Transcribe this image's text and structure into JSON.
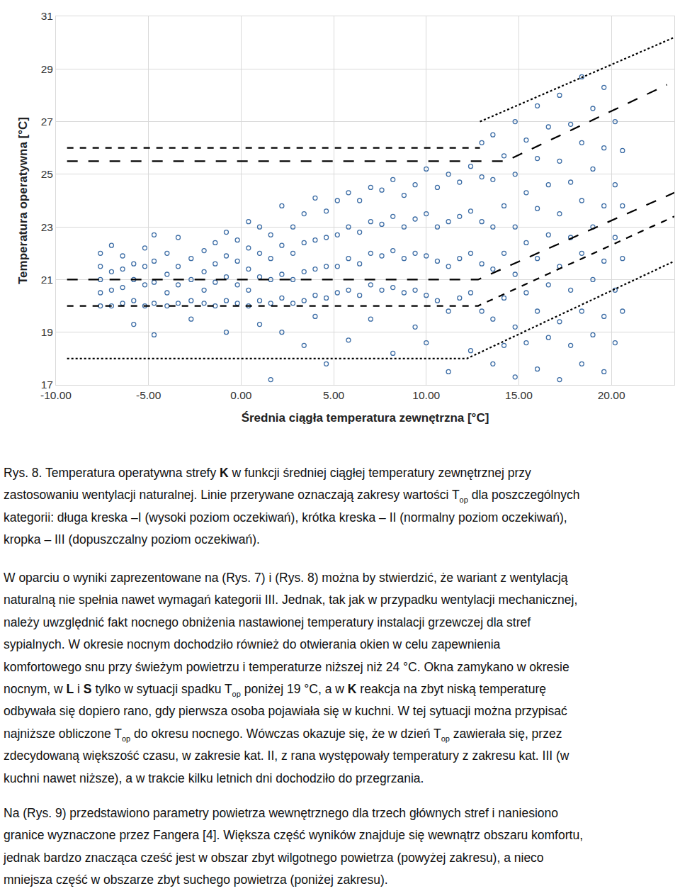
{
  "chart_data": {
    "type": "scatter",
    "xlabel": "Średnia ciągła temperatura zewnętrzna [°C]",
    "ylabel": "Temperatura operatywna [°C]",
    "xlim": [
      -10,
      23.4
    ],
    "ylim": [
      17,
      31
    ],
    "xticks": [
      {
        "value": -10,
        "label": "-10.00"
      },
      {
        "value": -5,
        "label": "-5.00"
      },
      {
        "value": 0,
        "label": "0.00"
      },
      {
        "value": 5,
        "label": "5.00"
      },
      {
        "value": 10,
        "label": "10.00"
      },
      {
        "value": 15,
        "label": "15.00"
      },
      {
        "value": 20,
        "label": "20.00"
      }
    ],
    "yticks": [
      17,
      19,
      21,
      23,
      25,
      27,
      29,
      31
    ],
    "grid": true,
    "color": "#3e6ea6",
    "marker": "circle-open",
    "columns": [
      {
        "x": -7.6,
        "values": [
          20.0,
          20.5,
          21.0,
          21.5,
          22.0
        ]
      },
      {
        "x": -7.0,
        "values": [
          20.0,
          20.6,
          21.3,
          22.3
        ]
      },
      {
        "x": -6.4,
        "values": [
          20.1,
          20.7,
          21.4,
          21.9
        ]
      },
      {
        "x": -5.8,
        "values": [
          19.3,
          20.2,
          21.0,
          21.6
        ]
      },
      {
        "x": -5.2,
        "values": [
          20.0,
          20.8,
          21.5,
          22.2
        ]
      },
      {
        "x": -4.7,
        "values": [
          18.9,
          20.1,
          20.9,
          21.7,
          22.7
        ]
      },
      {
        "x": -4.0,
        "values": [
          20.0,
          20.5,
          21.2,
          22.0
        ]
      },
      {
        "x": -3.4,
        "values": [
          20.1,
          20.8,
          21.5,
          22.6
        ]
      },
      {
        "x": -2.7,
        "values": [
          19.5,
          20.2,
          21.0,
          21.8
        ]
      },
      {
        "x": -2.0,
        "values": [
          20.1,
          20.6,
          21.3,
          22.1
        ]
      },
      {
        "x": -1.4,
        "values": [
          20.0,
          20.9,
          21.6,
          22.4
        ]
      },
      {
        "x": -0.8,
        "values": [
          19.0,
          20.2,
          21.1,
          21.9,
          22.8
        ]
      },
      {
        "x": -0.2,
        "values": [
          20.1,
          20.8,
          21.7,
          22.5
        ]
      },
      {
        "x": 0.4,
        "values": [
          20.0,
          20.6,
          21.4,
          22.2,
          23.2
        ]
      },
      {
        "x": 1.0,
        "values": [
          19.3,
          20.2,
          21.1,
          22.0,
          23.0
        ]
      },
      {
        "x": 1.6,
        "values": [
          17.2,
          20.1,
          21.0,
          21.8,
          22.7
        ]
      },
      {
        "x": 2.2,
        "values": [
          19.0,
          20.3,
          21.2,
          22.3,
          23.8
        ]
      },
      {
        "x": 2.8,
        "values": [
          20.1,
          21.0,
          22.0,
          23.0
        ]
      },
      {
        "x": 3.4,
        "values": [
          18.5,
          20.2,
          21.3,
          22.4,
          23.5
        ]
      },
      {
        "x": 4.0,
        "values": [
          19.6,
          20.4,
          21.4,
          22.5,
          24.1
        ]
      },
      {
        "x": 4.6,
        "values": [
          17.8,
          20.3,
          21.5,
          22.6,
          23.6
        ]
      },
      {
        "x": 5.2,
        "values": [
          20.5,
          21.5,
          22.7,
          24.0
        ]
      },
      {
        "x": 5.8,
        "values": [
          18.7,
          20.6,
          21.8,
          23.0,
          24.3
        ]
      },
      {
        "x": 6.4,
        "values": [
          20.4,
          21.6,
          22.8,
          24.0
        ]
      },
      {
        "x": 7.0,
        "values": [
          19.5,
          20.8,
          22.0,
          23.2,
          24.5
        ]
      },
      {
        "x": 7.6,
        "values": [
          20.6,
          21.9,
          23.1,
          24.4
        ]
      },
      {
        "x": 8.2,
        "values": [
          18.2,
          20.7,
          22.1,
          23.4,
          24.8
        ]
      },
      {
        "x": 8.8,
        "values": [
          20.5,
          21.8,
          23.0,
          24.2
        ]
      },
      {
        "x": 9.4,
        "values": [
          19.2,
          20.6,
          22.0,
          23.3,
          24.6
        ]
      },
      {
        "x": 10.0,
        "values": [
          18.6,
          20.4,
          21.9,
          23.5,
          25.2
        ]
      },
      {
        "x": 10.6,
        "values": [
          20.2,
          21.7,
          23.0,
          24.5
        ]
      },
      {
        "x": 11.2,
        "values": [
          17.5,
          19.8,
          21.5,
          23.2,
          25.0
        ]
      },
      {
        "x": 11.8,
        "values": [
          20.3,
          21.8,
          23.4,
          24.7
        ]
      },
      {
        "x": 12.4,
        "values": [
          18.3,
          20.5,
          22.0,
          23.6,
          25.3
        ]
      },
      {
        "x": 13.0,
        "values": [
          19.8,
          21.6,
          23.2,
          24.9,
          26.2
        ]
      },
      {
        "x": 13.6,
        "values": [
          17.8,
          19.5,
          21.4,
          23.0,
          24.8,
          26.5
        ]
      },
      {
        "x": 14.2,
        "values": [
          18.5,
          20.3,
          22.0,
          23.8,
          25.7
        ]
      },
      {
        "x": 14.8,
        "values": [
          17.3,
          19.2,
          21.2,
          23.0,
          25.0,
          27.0
        ]
      },
      {
        "x": 15.4,
        "values": [
          18.6,
          20.5,
          22.4,
          24.3,
          26.3
        ]
      },
      {
        "x": 16.0,
        "values": [
          17.6,
          19.8,
          21.8,
          23.7,
          25.6,
          27.6
        ]
      },
      {
        "x": 16.6,
        "values": [
          18.8,
          20.8,
          22.7,
          24.6,
          26.8
        ]
      },
      {
        "x": 17.2,
        "values": [
          17.2,
          19.4,
          21.5,
          23.5,
          25.5,
          28.0
        ]
      },
      {
        "x": 17.8,
        "values": [
          18.5,
          20.6,
          22.6,
          24.7,
          26.9
        ]
      },
      {
        "x": 18.4,
        "values": [
          17.8,
          19.8,
          22.0,
          24.0,
          26.2,
          28.7
        ]
      },
      {
        "x": 19.0,
        "values": [
          18.9,
          21.0,
          23.0,
          25.2,
          27.5
        ]
      },
      {
        "x": 19.6,
        "values": [
          17.5,
          19.6,
          21.7,
          23.8,
          26.0,
          28.3
        ]
      },
      {
        "x": 20.2,
        "values": [
          18.6,
          20.6,
          22.6,
          24.6,
          27.0
        ]
      },
      {
        "x": 20.6,
        "values": [
          19.8,
          21.8,
          23.8,
          25.9
        ]
      }
    ],
    "bands": [
      {
        "line_style": "longdash",
        "x": [
          -9.4,
          14.3,
          23.0
        ],
        "values": [
          25.5,
          25.5,
          28.4
        ]
      },
      {
        "line_style": "longdash",
        "x": [
          -9.4,
          12.8,
          23.4
        ],
        "values": [
          21.0,
          21.0,
          24.3
        ]
      },
      {
        "line_style": "dash",
        "x": [
          -9.4,
          12.9
        ],
        "values": [
          26.0,
          26.0
        ]
      },
      {
        "line_style": "dash",
        "x": [
          -9.4,
          12.8,
          23.4
        ],
        "values": [
          20.0,
          20.0,
          23.4
        ]
      },
      {
        "line_style": "dot",
        "x": [
          12.9,
          23.4
        ],
        "values": [
          27.0,
          30.2
        ]
      },
      {
        "line_style": "dot",
        "x": [
          -9.4,
          12.2,
          23.4
        ],
        "values": [
          18.0,
          18.0,
          21.7
        ]
      }
    ]
  },
  "document": {
    "caption": [
      [
        "Rys. 8. Temperatura operatywna strefy ",
        {
          "b": "K"
        },
        " w funkcji średniej ciągłej temperatury zewnętrznej przy"
      ],
      [
        "zastosowaniu wentylacji naturalnej. Linie przerywane oznaczają zakresy wartości T",
        {
          "sub": "op"
        },
        " dla poszczególnych"
      ],
      [
        "kategorii: długa kreska –I (wysoki poziom oczekiwań), krótka kreska – II (normalny poziom oczekiwań),"
      ],
      [
        "kropka – III (dopuszczalny poziom oczekiwań)."
      ]
    ],
    "paragraphs": [
      [
        [
          "W oparciu o wyniki zaprezentowane na (Rys. 7) i (Rys. 8) można by stwierdzić, że wariant z wentylacją"
        ],
        [
          "naturalną nie spełnia nawet wymagań kategorii III. Jednak, tak jak w przypadku wentylacji mechanicznej,"
        ],
        [
          "należy uwzględnić fakt nocnego obniżenia nastawionej temperatury instalacji grzewczej dla stref"
        ],
        [
          "sypialnych. W okresie nocnym dochodziło również do otwierania okien w celu zapewnienia"
        ],
        [
          "komfortowego snu przy świeżym powietrzu i temperaturze niższej niż 24 °C. Okna zamykano w okresie"
        ],
        [
          "nocnym, w ",
          {
            "b": "L"
          },
          " i ",
          {
            "b": "S"
          },
          " tylko w sytuacji spadku T",
          {
            "sub": "op"
          },
          " poniżej 19 °C, a w ",
          {
            "b": "K"
          },
          " reakcja na zbyt niską temperaturę"
        ],
        [
          "odbywała się dopiero rano, gdy pierwsza osoba pojawiała się w kuchni. W tej sytuacji można przypisać"
        ],
        [
          "najniższe obliczone T",
          {
            "sub": "op"
          },
          " do okresu nocnego. Wówczas okazuje się, że w dzień T",
          {
            "sub": "op"
          },
          " zawierała się, przez"
        ],
        [
          "zdecydowaną większość czasu, w zakresie kat. II, z rana występowały temperatury z zakresu kat. III (w"
        ],
        [
          "kuchni nawet niższe), a w trakcie kilku letnich dni dochodziło do przegrzania."
        ]
      ],
      [
        [
          "Na (Rys. 9) przedstawiono parametry powietrza wewnętrznego dla trzech głównych stref i naniesiono"
        ],
        [
          "granice wyznaczone przez Fangera [4]. Większa część wyników znajduje się wewnątrz obszaru komfortu,"
        ],
        [
          "jednak bardzo znacząca cześć jest w obszar zbyt wilgotnego powietrza (powyżej zakresu), a nieco"
        ],
        [
          "mniejsza część w obszarze zbyt suchego powietrza (poniżej zakresu)."
        ]
      ]
    ]
  }
}
